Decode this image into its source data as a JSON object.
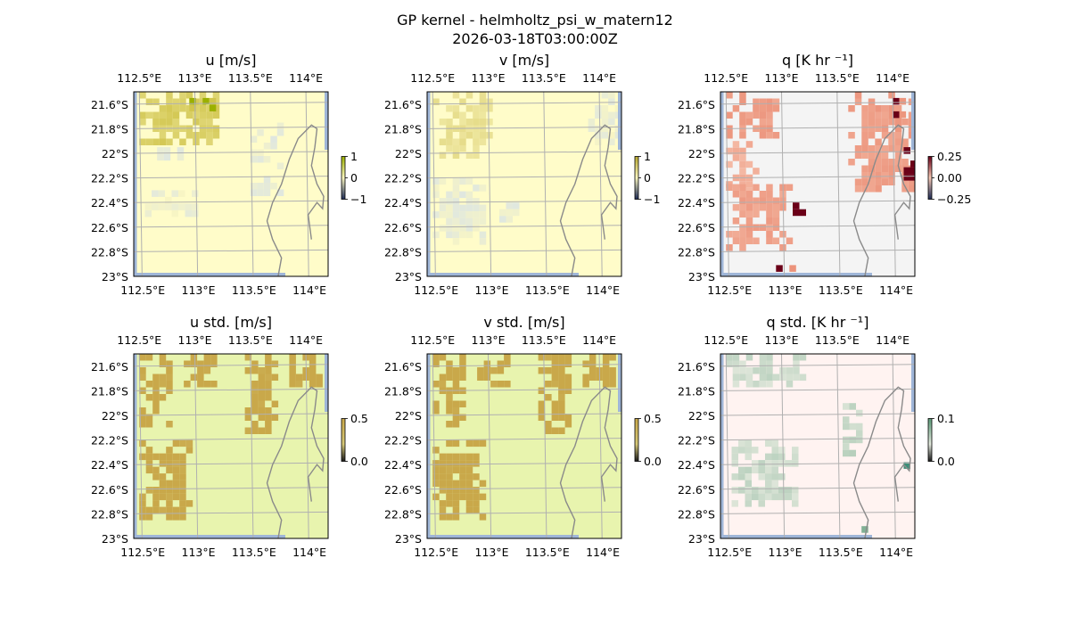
{
  "figure": {
    "title_line1": "GP kernel - helmholtz_psi_w_matern12",
    "title_line2": "2026-03-18T03:00:00Z"
  },
  "chart_data": [
    {
      "type": "heatmap",
      "id": "u",
      "title": "u [m/s]",
      "xticks": [
        "112.5°E",
        "113°E",
        "113.5°E",
        "114°E"
      ],
      "yticks": [
        "21.6°S",
        "21.8°S",
        "22°S",
        "22.2°S",
        "22.4°S",
        "22.6°S",
        "22.8°S",
        "23°S"
      ],
      "xlim": [
        112.45,
        114.2
      ],
      "ylim": [
        -23.0,
        -21.5
      ],
      "colorbar": {
        "ticks": [
          "1",
          "0",
          "−1"
        ],
        "range": [
          -1,
          1
        ],
        "colormap": "diverging-yellow"
      },
      "colors": {
        "background": "#fffcc9",
        "high": "#cbbe3e",
        "mid": "#fbf7c0",
        "low": "#dfe7e0",
        "accent": "#9bb000"
      },
      "regions": [
        {
          "lon": [
            112.5,
            113.2
          ],
          "lat": [
            -21.9,
            -21.5
          ],
          "level": 0.7
        },
        {
          "lon": [
            112.95,
            113.15
          ],
          "lat": [
            -21.65,
            -21.55
          ],
          "level": 1.0
        },
        {
          "lon": [
            112.6,
            112.9
          ],
          "lat": [
            -22.1,
            -21.95
          ],
          "level": -0.2
        },
        {
          "lon": [
            112.55,
            113.0
          ],
          "lat": [
            -22.5,
            -22.3
          ],
          "level": -0.15
        },
        {
          "lon": [
            113.5,
            113.75
          ],
          "lat": [
            -22.3,
            -21.75
          ],
          "level": -0.2
        }
      ]
    },
    {
      "type": "heatmap",
      "id": "v",
      "title": "v [m/s]",
      "xticks": [
        "112.5°E",
        "113°E",
        "113.5°E",
        "114°E"
      ],
      "yticks": [
        "21.6°S",
        "21.8°S",
        "22°S",
        "22.2°S",
        "22.4°S",
        "22.6°S",
        "22.8°S",
        "23°S"
      ],
      "xlim": [
        112.45,
        114.2
      ],
      "ylim": [
        -23.0,
        -21.5
      ],
      "colorbar": {
        "ticks": [
          "1",
          "0",
          "−1"
        ],
        "range": [
          -1,
          1
        ],
        "colormap": "diverging-yellow"
      },
      "colors": {
        "background": "#fffcc9",
        "high": "#d9cc6a",
        "mid": "#fbf7c0",
        "low": "#dfe7e0",
        "accent": "#b8a830"
      },
      "regions": [
        {
          "lon": [
            112.5,
            113.0
          ],
          "lat": [
            -22.0,
            -21.5
          ],
          "level": 0.5
        },
        {
          "lon": [
            112.5,
            112.95
          ],
          "lat": [
            -22.7,
            -22.2
          ],
          "level": -0.2
        },
        {
          "lon": [
            113.9,
            114.15
          ],
          "lat": [
            -21.9,
            -21.5
          ],
          "level": -0.15
        },
        {
          "lon": [
            113.1,
            113.3
          ],
          "lat": [
            -22.55,
            -22.4
          ],
          "level": -0.2
        }
      ]
    },
    {
      "type": "heatmap",
      "id": "q",
      "title": "q [K hr ⁻¹]",
      "xticks": [
        "112.5°E",
        "113°E",
        "113.5°E",
        "114°E"
      ],
      "yticks": [
        "21.6°S",
        "21.8°S",
        "22°S",
        "22.2°S",
        "22.4°S",
        "22.6°S",
        "22.8°S",
        "23°S"
      ],
      "xlim": [
        112.45,
        114.2
      ],
      "ylim": [
        -23.0,
        -21.5
      ],
      "colorbar": {
        "ticks": [
          "0.25",
          "0.00",
          "−0.25"
        ],
        "range": [
          -0.35,
          0.35
        ],
        "colormap": "RdBu_r"
      },
      "colors": {
        "background": "#f4f4f4",
        "high": "#e8836a",
        "mid": "#f8c9b5",
        "low": "#b8d3e8",
        "accent": "#6b0018"
      },
      "regions": [
        {
          "lon": [
            112.5,
            112.95
          ],
          "lat": [
            -21.85,
            -21.5
          ],
          "level": 0.6
        },
        {
          "lon": [
            112.5,
            112.75
          ],
          "lat": [
            -22.3,
            -21.9
          ],
          "level": 0.35
        },
        {
          "lon": [
            112.5,
            113.05
          ],
          "lat": [
            -22.75,
            -22.25
          ],
          "level": 0.55
        },
        {
          "lon": [
            113.6,
            114.15
          ],
          "lat": [
            -22.3,
            -21.5
          ],
          "level": 0.6
        },
        {
          "lon": [
            114.0,
            114.15
          ],
          "lat": [
            -21.7,
            -21.55
          ],
          "level": 0.85
        },
        {
          "lon": [
            114.1,
            114.18
          ],
          "lat": [
            -22.2,
            -21.95
          ],
          "level": 1.0
        },
        {
          "lon": [
            113.1,
            113.2
          ],
          "lat": [
            -22.55,
            -22.4
          ],
          "level": 0.9
        },
        {
          "lon": [
            112.95,
            113.1
          ],
          "lat": [
            -22.95,
            -22.8
          ],
          "level": 0.9
        }
      ]
    },
    {
      "type": "heatmap",
      "id": "u_std",
      "title": "u std. [m/s]",
      "xticks": [
        "112.5°E",
        "113°E",
        "113.5°E",
        "114°E"
      ],
      "yticks": [
        "21.6°S",
        "21.8°S",
        "22°S",
        "22.2°S",
        "22.4°S",
        "22.6°S",
        "22.8°S",
        "23°S"
      ],
      "xlim": [
        112.45,
        114.2
      ],
      "ylim": [
        -23.0,
        -21.5
      ],
      "colorbar": {
        "ticks": [
          "0.5",
          "0.0"
        ],
        "range": [
          0,
          0.5
        ],
        "colormap": "sequential-olive"
      },
      "colors": {
        "background": "#e8f4ae",
        "high": "#c9a84a",
        "mid": "#d6c878",
        "low": "#e8f4ae",
        "accent": "#c9a84a"
      },
      "regions": [
        {
          "lon": [
            112.5,
            112.75
          ],
          "lat": [
            -22.05,
            -21.5
          ],
          "level": 1.0
        },
        {
          "lon": [
            112.5,
            112.95
          ],
          "lat": [
            -22.85,
            -22.2
          ],
          "level": 1.0
        },
        {
          "lon": [
            112.9,
            113.15
          ],
          "lat": [
            -21.75,
            -21.5
          ],
          "level": 1.0
        },
        {
          "lon": [
            113.45,
            113.75
          ],
          "lat": [
            -22.1,
            -21.5
          ],
          "level": 1.0
        },
        {
          "lon": [
            113.85,
            114.15
          ],
          "lat": [
            -21.75,
            -21.5
          ],
          "level": 1.0
        }
      ]
    },
    {
      "type": "heatmap",
      "id": "v_std",
      "title": "v std. [m/s]",
      "xticks": [
        "112.5°E",
        "113°E",
        "113.5°E",
        "114°E"
      ],
      "yticks": [
        "21.6°S",
        "21.8°S",
        "22°S",
        "22.2°S",
        "22.4°S",
        "22.6°S",
        "22.8°S",
        "23°S"
      ],
      "xlim": [
        112.45,
        114.2
      ],
      "ylim": [
        -23.0,
        -21.5
      ],
      "colorbar": {
        "ticks": [
          "0.5",
          "0.0"
        ],
        "range": [
          0,
          0.5
        ],
        "colormap": "sequential-olive"
      },
      "colors": {
        "background": "#e8f4ae",
        "high": "#c9a84a",
        "mid": "#d6c878",
        "low": "#e8f4ae",
        "accent": "#c9a84a"
      },
      "regions": [
        {
          "lon": [
            112.5,
            112.75
          ],
          "lat": [
            -22.05,
            -21.5
          ],
          "level": 1.0
        },
        {
          "lon": [
            112.5,
            112.95
          ],
          "lat": [
            -22.85,
            -22.2
          ],
          "level": 1.0
        },
        {
          "lon": [
            112.9,
            113.15
          ],
          "lat": [
            -21.75,
            -21.5
          ],
          "level": 1.0
        },
        {
          "lon": [
            113.45,
            113.75
          ],
          "lat": [
            -22.1,
            -21.5
          ],
          "level": 1.0
        },
        {
          "lon": [
            113.85,
            114.15
          ],
          "lat": [
            -21.75,
            -21.5
          ],
          "level": 1.0
        }
      ]
    },
    {
      "type": "heatmap",
      "id": "q_std",
      "title": "q std. [K hr ⁻¹]",
      "xticks": [
        "112.5°E",
        "113°E",
        "113.5°E",
        "114°E"
      ],
      "yticks": [
        "21.6°S",
        "21.8°S",
        "22°S",
        "22.2°S",
        "22.4°S",
        "22.6°S",
        "22.8°S",
        "23°S"
      ],
      "xlim": [
        112.45,
        114.2
      ],
      "ylim": [
        -23.0,
        -21.5
      ],
      "colorbar": {
        "ticks": [
          "0.1",
          "0.0"
        ],
        "range": [
          0,
          0.1
        ],
        "colormap": "sequential-green"
      },
      "colors": {
        "background": "#fff3f1",
        "high": "#5a9a78",
        "mid": "#e2e8dc",
        "low": "#fff3f1",
        "accent": "#3a8f78"
      },
      "regions": [
        {
          "lon": [
            112.5,
            113.2
          ],
          "lat": [
            -21.75,
            -21.5
          ],
          "level": 0.15
        },
        {
          "lon": [
            112.55,
            113.1
          ],
          "lat": [
            -22.7,
            -22.2
          ],
          "level": 0.15
        },
        {
          "lon": [
            113.55,
            113.7
          ],
          "lat": [
            -22.3,
            -21.9
          ],
          "level": 0.2
        },
        {
          "lon": [
            114.1,
            114.16
          ],
          "lat": [
            -22.45,
            -22.38
          ],
          "level": 1.0
        },
        {
          "lon": [
            113.72,
            113.78
          ],
          "lat": [
            -23.0,
            -22.9
          ],
          "level": 0.8
        }
      ]
    }
  ]
}
